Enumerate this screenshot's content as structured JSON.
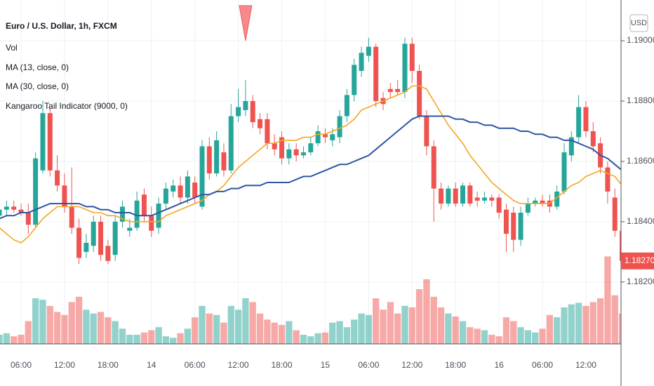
{
  "chart_data": {
    "type": "candlestick",
    "title": "Euro / U.S. Dollar, 1h, FXCM",
    "currency": "USD",
    "categories": [
      null,
      null,
      null,
      "06:00",
      null,
      null,
      null,
      null,
      null,
      "12:00",
      null,
      null,
      null,
      null,
      null,
      "18:00",
      null,
      null,
      null,
      null,
      null,
      "14",
      null,
      null,
      null,
      null,
      null,
      "06:00",
      null,
      null,
      null,
      null,
      null,
      "12:00",
      null,
      null,
      null,
      null,
      null,
      "18:00",
      null,
      null,
      null,
      null,
      null,
      "15",
      null,
      null,
      null,
      null,
      null,
      "06:00",
      null,
      null,
      null,
      null,
      null,
      "12:00",
      null,
      null,
      null,
      null,
      null,
      "18:00",
      null,
      null,
      null,
      null,
      null,
      "16",
      null,
      null,
      null,
      null,
      null,
      "06:00",
      null,
      null,
      null,
      null,
      null,
      "12:00",
      null,
      null,
      null,
      null,
      null
    ],
    "open": [
      1.1842,
      1.1844,
      1.1845,
      1.1844,
      1.1843,
      1.1839,
      1.1857,
      1.1876,
      1.1857,
      1.1852,
      1.1845,
      1.1838,
      1.183,
      1.1832,
      1.184,
      1.1832,
      1.1829,
      1.184,
      1.1837,
      1.1838,
      1.1849,
      1.1842,
      1.1838,
      1.1846,
      1.185,
      1.1852,
      1.1848,
      1.1853,
      1.1845,
      1.1865,
      1.1856,
      1.1863,
      1.1857,
      1.1875,
      1.1877,
      1.188,
      1.1874,
      1.1874,
      1.1866,
      1.1868,
      1.1861,
      1.1864,
      1.1862,
      1.1863,
      1.1866,
      1.1869,
      1.1867,
      1.1868,
      1.1875,
      1.1882,
      1.189,
      1.1895,
      1.1898,
      1.1881,
      1.1884,
      1.1884,
      1.1883,
      1.1899,
      1.189,
      1.1875,
      1.1865,
      1.1851,
      1.1846,
      1.1851,
      1.1846,
      1.1852,
      1.1848,
      1.1847,
      1.1848,
      1.1848,
      1.1844,
      1.1843,
      1.1834,
      1.1843,
      1.1846,
      1.1847,
      1.1847,
      1.1845,
      1.185,
      1.1862,
      1.1868,
      1.1878,
      1.187,
      1.1866,
      1.1858,
      1.1848,
      1.1837
    ],
    "high": [
      1.1846,
      1.1847,
      1.1847,
      1.1846,
      1.1846,
      1.1863,
      1.188,
      1.1878,
      1.1862,
      1.1856,
      1.1858,
      1.1841,
      1.1836,
      1.1842,
      1.1842,
      1.1834,
      1.1842,
      1.1847,
      1.1841,
      1.185,
      1.1851,
      1.1845,
      1.1848,
      1.1853,
      1.1854,
      1.1855,
      1.1857,
      1.1855,
      1.1867,
      1.1868,
      1.187,
      1.1866,
      1.1879,
      1.1884,
      1.1887,
      1.1882,
      1.1876,
      1.1876,
      1.1869,
      1.187,
      1.1866,
      1.1866,
      1.1865,
      1.1868,
      1.1872,
      1.1871,
      1.1871,
      1.1877,
      1.1884,
      1.1894,
      1.1898,
      1.1901,
      1.1899,
      1.1883,
      1.1886,
      1.1887,
      1.1901,
      1.1901,
      1.1892,
      1.1877,
      1.1867,
      1.1853,
      1.1852,
      1.1853,
      1.1853,
      1.1853,
      1.185,
      1.185,
      1.1849,
      1.1849,
      1.1846,
      1.1845,
      1.1845,
      1.1848,
      1.1848,
      1.1849,
      1.1849,
      1.1852,
      1.1866,
      1.187,
      1.1882,
      1.188,
      1.1873,
      1.1868,
      1.186,
      1.1851,
      1.184
    ],
    "low": [
      1.184,
      1.1842,
      1.1843,
      1.1842,
      1.1836,
      1.1838,
      1.1856,
      1.1855,
      1.185,
      1.1843,
      1.1836,
      1.1826,
      1.1828,
      1.183,
      1.1827,
      1.1826,
      1.1827,
      1.1838,
      1.1835,
      1.1837,
      1.184,
      1.1835,
      1.1836,
      1.1844,
      1.1848,
      1.1846,
      1.1846,
      1.1846,
      1.1844,
      1.1854,
      1.1855,
      1.1855,
      1.1856,
      1.1873,
      1.1875,
      1.1871,
      1.1869,
      1.1864,
      1.1862,
      1.1859,
      1.1859,
      1.186,
      1.1861,
      1.1862,
      1.1865,
      1.1866,
      1.1865,
      1.1866,
      1.1873,
      1.188,
      1.1888,
      1.1893,
      1.1878,
      1.1877,
      1.1881,
      1.1882,
      1.1881,
      1.1886,
      1.1874,
      1.1862,
      1.184,
      1.1844,
      1.1845,
      1.1845,
      1.1845,
      1.1845,
      1.1845,
      1.1846,
      1.1845,
      1.1841,
      1.183,
      1.183,
      1.1832,
      1.1842,
      1.1845,
      1.1845,
      1.1843,
      1.1844,
      1.1849,
      1.186,
      1.1866,
      1.1868,
      1.1863,
      1.1856,
      1.1846,
      1.1835,
      1.1826
    ],
    "close": [
      1.1844,
      1.1845,
      1.1844,
      1.1843,
      1.1839,
      1.1861,
      1.1876,
      1.1857,
      1.1852,
      1.1845,
      1.1838,
      1.1828,
      1.1833,
      1.184,
      1.1829,
      1.1827,
      1.184,
      1.1845,
      1.1838,
      1.1847,
      1.1842,
      1.1837,
      1.1846,
      1.1851,
      1.1852,
      1.1848,
      1.1855,
      1.1848,
      1.1865,
      1.1856,
      1.1867,
      1.1857,
      1.1875,
      1.1878,
      1.188,
      1.1873,
      1.1871,
      1.1866,
      1.1864,
      1.1861,
      1.1864,
      1.1862,
      1.1863,
      1.1866,
      1.187,
      1.1868,
      1.1869,
      1.1875,
      1.1882,
      1.1892,
      1.1896,
      1.1898,
      1.188,
      1.1879,
      1.1883,
      1.1883,
      1.1899,
      1.189,
      1.1875,
      1.1865,
      1.1851,
      1.1846,
      1.1851,
      1.1846,
      1.1852,
      1.1846,
      1.1847,
      1.1848,
      1.1847,
      1.1843,
      1.1836,
      1.1834,
      1.1843,
      1.1846,
      1.1847,
      1.1846,
      1.1845,
      1.185,
      1.1863,
      1.1868,
      1.1878,
      1.187,
      1.1865,
      1.1858,
      1.185,
      1.1837,
      1.1827
    ],
    "up_color": "#26a69a",
    "down_color": "#ef5350",
    "series": [
      {
        "name": "MA (13, close, 0)",
        "color": "#f5a623",
        "values": [
          1.1838,
          1.1836,
          1.1834,
          1.1833,
          1.1835,
          1.1838,
          1.1841,
          1.1843,
          1.1845,
          1.1845,
          1.1845,
          1.1845,
          1.1844,
          1.1843,
          1.1843,
          1.1842,
          1.1842,
          1.1841,
          1.184,
          1.184,
          1.184,
          1.184,
          1.184,
          1.1842,
          1.1843,
          1.1844,
          1.1845,
          1.1846,
          1.1847,
          1.1849,
          1.185,
          1.1852,
          1.1855,
          1.1858,
          1.186,
          1.1862,
          1.1864,
          1.1866,
          1.1866,
          1.1867,
          1.1867,
          1.1867,
          1.1868,
          1.1868,
          1.1869,
          1.1869,
          1.187,
          1.1871,
          1.1872,
          1.1874,
          1.1877,
          1.1878,
          1.1879,
          1.188,
          1.1881,
          1.1882,
          1.1883,
          1.1885,
          1.1885,
          1.1884,
          1.188,
          1.1876,
          1.1872,
          1.1869,
          1.1866,
          1.1862,
          1.1859,
          1.1856,
          1.1853,
          1.1851,
          1.1849,
          1.1847,
          1.1846,
          1.1846,
          1.1846,
          1.1846,
          1.1846,
          1.1848,
          1.185,
          1.1852,
          1.1853,
          1.1855,
          1.1856,
          1.1857,
          1.1856,
          1.1855,
          1.1852
        ]
      },
      {
        "name": "MA (30, close, 0)",
        "color": "#2f55a4",
        "values": [
          1.1841,
          1.1842,
          1.1842,
          1.1843,
          1.1843,
          1.1844,
          1.1845,
          1.1846,
          1.1846,
          1.1846,
          1.1846,
          1.1846,
          1.1845,
          1.1845,
          1.1844,
          1.1844,
          1.1843,
          1.1843,
          1.1843,
          1.1842,
          1.1842,
          1.1842,
          1.1843,
          1.1844,
          1.1845,
          1.1846,
          1.1847,
          1.1848,
          1.1849,
          1.1849,
          1.185,
          1.185,
          1.1851,
          1.1851,
          1.1852,
          1.1852,
          1.1852,
          1.1853,
          1.1853,
          1.1853,
          1.1853,
          1.1854,
          1.1855,
          1.1855,
          1.1856,
          1.1857,
          1.1858,
          1.1859,
          1.1859,
          1.186,
          1.1861,
          1.1862,
          1.1864,
          1.1866,
          1.1868,
          1.187,
          1.1872,
          1.1874,
          1.1875,
          1.1875,
          1.1875,
          1.1875,
          1.1875,
          1.1874,
          1.1874,
          1.1873,
          1.1873,
          1.1872,
          1.1872,
          1.1871,
          1.1871,
          1.1871,
          1.187,
          1.187,
          1.1869,
          1.1869,
          1.1868,
          1.1868,
          1.1867,
          1.1867,
          1.1866,
          1.1865,
          1.1864,
          1.1862,
          1.1861,
          1.1859,
          1.1857
        ]
      }
    ],
    "volume": {
      "name": "Vol",
      "values": [
        12,
        14,
        10,
        12,
        30,
        60,
        58,
        50,
        42,
        38,
        55,
        62,
        45,
        40,
        42,
        35,
        30,
        20,
        12,
        12,
        15,
        18,
        22,
        10,
        8,
        14,
        20,
        35,
        50,
        40,
        38,
        28,
        50,
        45,
        60,
        55,
        40,
        32,
        28,
        25,
        30,
        18,
        12,
        10,
        14,
        15,
        28,
        30,
        22,
        32,
        40,
        38,
        60,
        45,
        55,
        40,
        50,
        48,
        72,
        85,
        62,
        48,
        40,
        36,
        30,
        22,
        20,
        18,
        12,
        10,
        35,
        30,
        22,
        18,
        15,
        20,
        38,
        35,
        48,
        52,
        54,
        50,
        55,
        60,
        115,
        64,
        40
      ],
      "lim": [
        0,
        120
      ]
    },
    "indicator": {
      "name": "Kangaroo Tail Indicator (9000, 0)",
      "signals": [
        34
      ],
      "color": "#f7898c"
    },
    "ylim": [
      1.17995,
      1.19135
    ],
    "yticks": [
      {
        "value": 1.19,
        "label": "1.19000"
      },
      {
        "value": 1.188,
        "label": "1.18800"
      },
      {
        "value": 1.186,
        "label": "1.18600"
      },
      {
        "value": 1.184,
        "label": "1.18400"
      },
      {
        "value": 1.182,
        "label": "1.18200"
      }
    ],
    "last_price": {
      "value": 1.1827,
      "label": "1.18270"
    },
    "grid": true
  }
}
